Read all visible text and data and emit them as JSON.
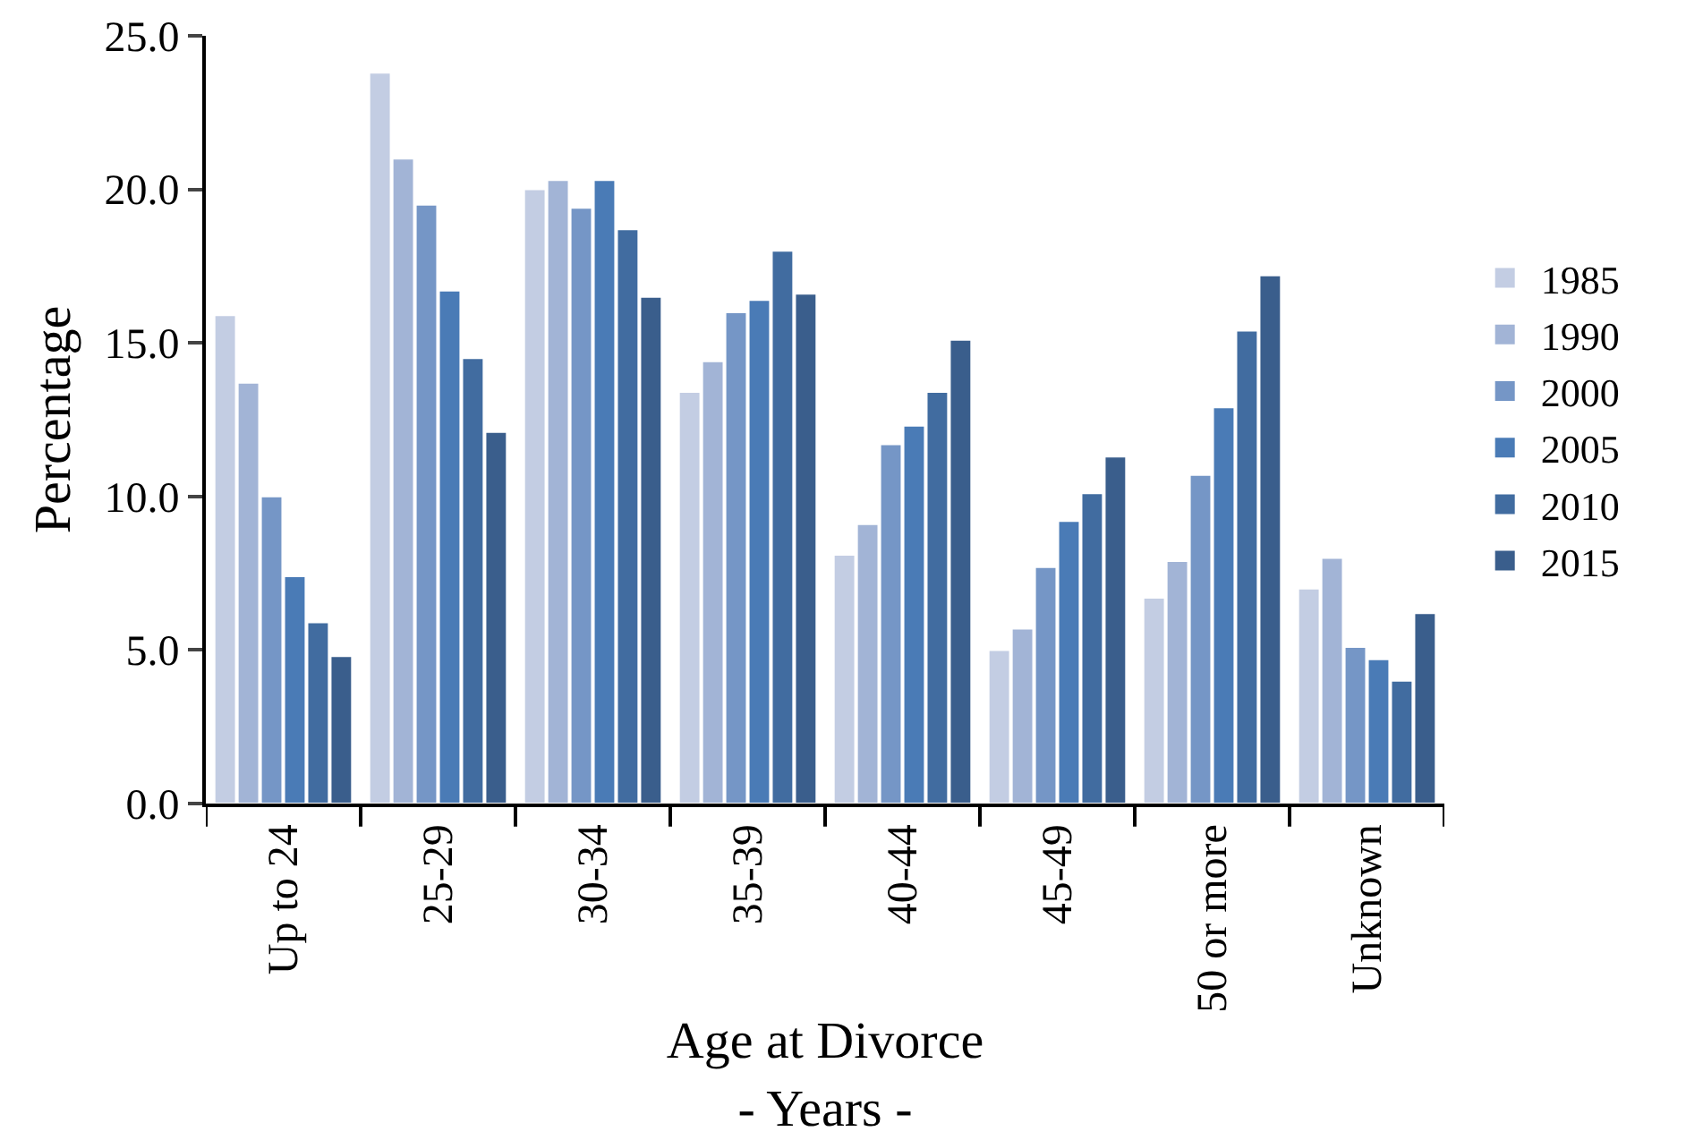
{
  "chart_data": {
    "type": "bar",
    "xlabel": "Age at Divorce\n- Years -",
    "ylabel": "Percentage",
    "categories": [
      "Up to 24",
      "25-29",
      "30-34",
      "35-39",
      "40-44",
      "45-49",
      "50 or more",
      "Unknown"
    ],
    "series": [
      {
        "name": "1985",
        "color": "#c3cde3",
        "values": [
          15.9,
          23.8,
          20.0,
          13.4,
          8.1,
          5.0,
          6.7,
          7.0
        ]
      },
      {
        "name": "1990",
        "color": "#a2b4d6",
        "values": [
          13.7,
          21.0,
          20.3,
          14.4,
          9.1,
          5.7,
          7.9,
          8.0
        ]
      },
      {
        "name": "2000",
        "color": "#7596c6",
        "values": [
          10.0,
          19.5,
          19.4,
          16.0,
          11.7,
          7.7,
          10.7,
          5.1
        ]
      },
      {
        "name": "2005",
        "color": "#4a7bb6",
        "values": [
          7.4,
          16.7,
          20.3,
          16.4,
          12.3,
          9.2,
          12.9,
          4.7
        ]
      },
      {
        "name": "2010",
        "color": "#416ca0",
        "values": [
          5.9,
          14.5,
          18.7,
          18.0,
          13.4,
          10.1,
          15.4,
          4.0
        ]
      },
      {
        "name": "2015",
        "color": "#3a5e8c",
        "values": [
          4.8,
          12.1,
          16.5,
          16.6,
          15.1,
          11.3,
          17.2,
          6.2
        ]
      }
    ],
    "ylim": [
      0,
      25
    ],
    "yticks": [
      {
        "value": 0,
        "label": "0.0"
      },
      {
        "value": 5,
        "label": "5.0"
      },
      {
        "value": 10,
        "label": "10.0"
      },
      {
        "value": 15,
        "label": "15.0"
      },
      {
        "value": 20,
        "label": "20.0"
      },
      {
        "value": 25,
        "label": "25.0"
      }
    ],
    "grid": false,
    "legend": "right"
  }
}
